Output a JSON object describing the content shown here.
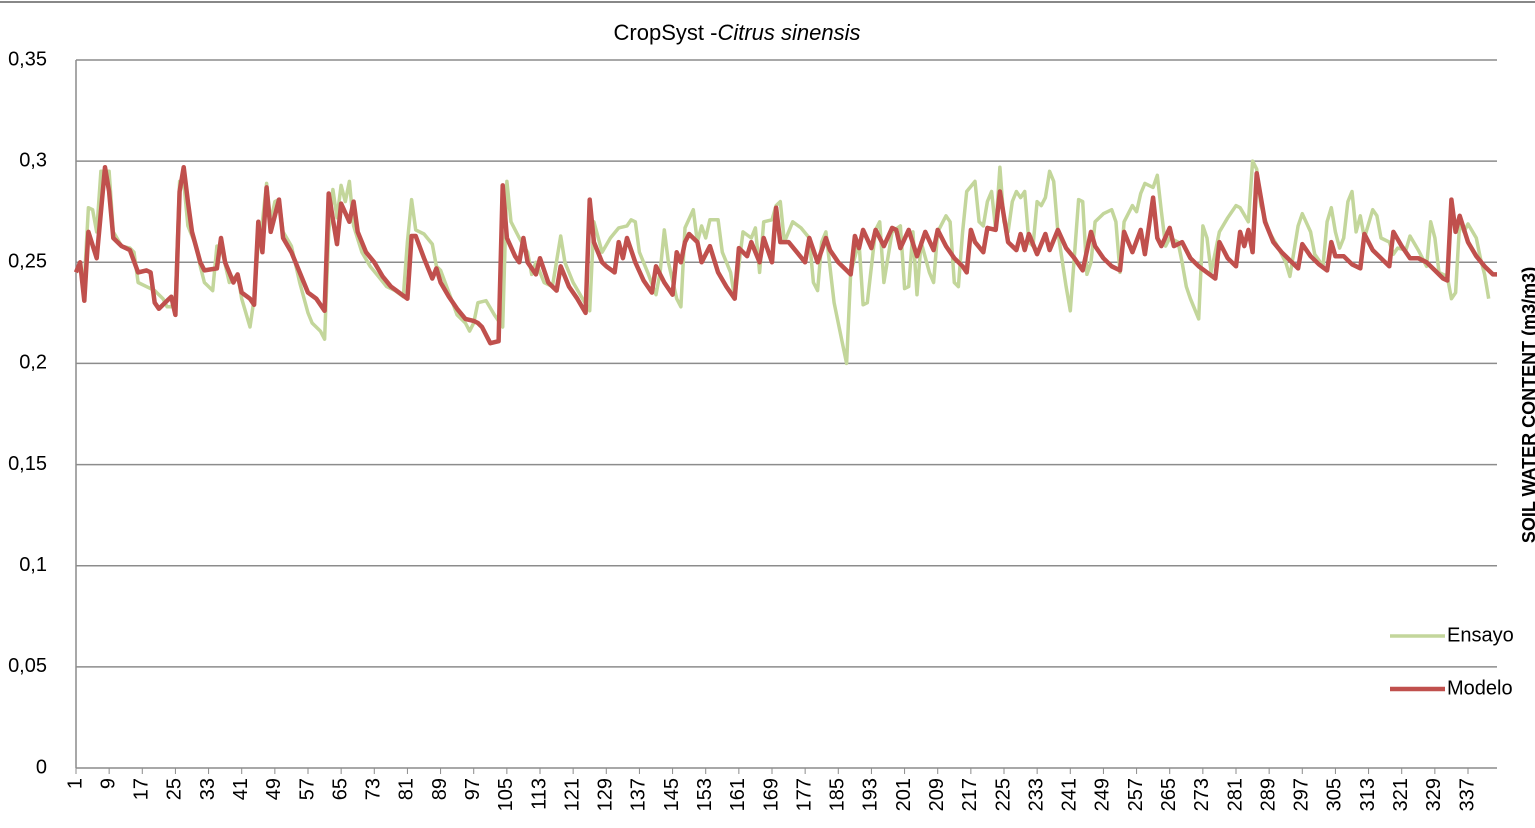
{
  "chart_data": {
    "type": "line",
    "title": "CropSyst -",
    "title_italic": "Citrus sinensis",
    "y_label": "SOIL WATER CONTENT (m3/m3)",
    "xlim": [
      1,
      344
    ],
    "xticks": [
      1,
      9,
      17,
      25,
      33,
      41,
      49,
      57,
      65,
      73,
      81,
      89,
      97,
      105,
      113,
      121,
      129,
      137,
      145,
      153,
      161,
      169,
      177,
      185,
      193,
      201,
      209,
      217,
      225,
      233,
      241,
      249,
      257,
      265,
      273,
      281,
      289,
      297,
      305,
      313,
      321,
      329,
      337
    ],
    "ylim": [
      0,
      0.35
    ],
    "yticks": [
      0,
      {
        "value": 0.05,
        "label": "0,05"
      },
      {
        "value": 0.1,
        "label": "0,1"
      },
      {
        "value": 0.15,
        "label": "0,15"
      },
      {
        "value": 0.2,
        "label": "0,2"
      },
      {
        "value": 0.25,
        "label": "0,25"
      },
      {
        "value": 0.3,
        "label": "0,3"
      },
      {
        "value": 0.35,
        "label": "0,35"
      }
    ],
    "grid": true,
    "legend": "right",
    "series": [
      {
        "name": "Ensayo",
        "color": "#c3d69b",
        "x": [
          1,
          2,
          3,
          4,
          5,
          6,
          7,
          9,
          10,
          12,
          14,
          15,
          16,
          18,
          20,
          22,
          23,
          24,
          25,
          26,
          27,
          28,
          30,
          31,
          32,
          34,
          35,
          36,
          38,
          40,
          41,
          43,
          44,
          45,
          46,
          47,
          48,
          49,
          50,
          51,
          53,
          55,
          57,
          58,
          60,
          61,
          62,
          63,
          64,
          65,
          66,
          67,
          68,
          70,
          72,
          74,
          76,
          78,
          80,
          81,
          82,
          83,
          85,
          87,
          88,
          89,
          91,
          93,
          95,
          96,
          97,
          98,
          100,
          102,
          104,
          105,
          106,
          108,
          110,
          111,
          112,
          114,
          116,
          118,
          119,
          121,
          123,
          125,
          126,
          128,
          130,
          132,
          134,
          135,
          136,
          137,
          139,
          141,
          142,
          143,
          144,
          146,
          147,
          148,
          150,
          151,
          152,
          153,
          154,
          156,
          157,
          159,
          160,
          162,
          164,
          165,
          166,
          167,
          169,
          170,
          171,
          172,
          174,
          176,
          178,
          179,
          180,
          181,
          182,
          184,
          186,
          187,
          188,
          190,
          191,
          192,
          194,
          195,
          196,
          198,
          200,
          201,
          202,
          203,
          204,
          205,
          207,
          208,
          209,
          211,
          212,
          213,
          214,
          215,
          216,
          218,
          219,
          220,
          221,
          222,
          223,
          224,
          225,
          226,
          227,
          228,
          229,
          230,
          231,
          232,
          233,
          234,
          235,
          236,
          237,
          238,
          240,
          241,
          243,
          244,
          245,
          246,
          247,
          249,
          251,
          252,
          253,
          254,
          256,
          257,
          258,
          259,
          261,
          262,
          263,
          264,
          265,
          267,
          268,
          269,
          270,
          272,
          273,
          274,
          275,
          277,
          279,
          281,
          282,
          284,
          285,
          286,
          287,
          289,
          291,
          293,
          294,
          296,
          297,
          299,
          300,
          302,
          303,
          304,
          305,
          306,
          307,
          308,
          309,
          310,
          311,
          312,
          314,
          315,
          316,
          318,
          319,
          320,
          322,
          323,
          325,
          327,
          328,
          329,
          330,
          332,
          333,
          334,
          335,
          336,
          337,
          339,
          340,
          341,
          342
        ],
        "values": [
          0.245,
          0.248,
          0.24,
          0.277,
          0.276,
          0.265,
          0.295,
          0.295,
          0.265,
          0.258,
          0.257,
          0.255,
          0.24,
          0.238,
          0.236,
          0.232,
          0.228,
          0.228,
          0.232,
          0.29,
          0.29,
          0.268,
          0.258,
          0.248,
          0.24,
          0.236,
          0.258,
          0.258,
          0.24,
          0.244,
          0.232,
          0.218,
          0.232,
          0.26,
          0.27,
          0.289,
          0.27,
          0.28,
          0.281,
          0.265,
          0.258,
          0.24,
          0.225,
          0.22,
          0.216,
          0.212,
          0.265,
          0.286,
          0.272,
          0.288,
          0.28,
          0.29,
          0.268,
          0.255,
          0.248,
          0.243,
          0.238,
          0.236,
          0.233,
          0.26,
          0.281,
          0.266,
          0.264,
          0.259,
          0.248,
          0.246,
          0.235,
          0.224,
          0.22,
          0.216,
          0.22,
          0.23,
          0.231,
          0.224,
          0.218,
          0.29,
          0.27,
          0.262,
          0.255,
          0.244,
          0.25,
          0.24,
          0.238,
          0.263,
          0.25,
          0.24,
          0.233,
          0.226,
          0.27,
          0.255,
          0.262,
          0.267,
          0.268,
          0.271,
          0.27,
          0.255,
          0.245,
          0.234,
          0.245,
          0.266,
          0.25,
          0.232,
          0.228,
          0.267,
          0.276,
          0.26,
          0.268,
          0.262,
          0.271,
          0.271,
          0.255,
          0.245,
          0.232,
          0.265,
          0.262,
          0.267,
          0.245,
          0.27,
          0.271,
          0.278,
          0.28,
          0.26,
          0.27,
          0.267,
          0.262,
          0.24,
          0.236,
          0.26,
          0.265,
          0.23,
          0.21,
          0.2,
          0.245,
          0.26,
          0.229,
          0.23,
          0.266,
          0.27,
          0.24,
          0.265,
          0.268,
          0.237,
          0.238,
          0.265,
          0.234,
          0.26,
          0.245,
          0.24,
          0.265,
          0.273,
          0.27,
          0.24,
          0.238,
          0.265,
          0.285,
          0.29,
          0.27,
          0.268,
          0.28,
          0.285,
          0.266,
          0.297,
          0.27,
          0.265,
          0.28,
          0.285,
          0.282,
          0.285,
          0.26,
          0.258,
          0.28,
          0.278,
          0.282,
          0.295,
          0.29,
          0.265,
          0.238,
          0.226,
          0.281,
          0.28,
          0.244,
          0.25,
          0.27,
          0.274,
          0.276,
          0.27,
          0.245,
          0.27,
          0.278,
          0.275,
          0.284,
          0.289,
          0.287,
          0.293,
          0.275,
          0.258,
          0.262,
          0.26,
          0.25,
          0.238,
          0.232,
          0.222,
          0.268,
          0.262,
          0.245,
          0.265,
          0.272,
          0.278,
          0.277,
          0.27,
          0.3,
          0.296,
          0.278,
          0.265,
          0.258,
          0.25,
          0.243,
          0.268,
          0.274,
          0.265,
          0.254,
          0.248,
          0.27,
          0.277,
          0.265,
          0.257,
          0.262,
          0.28,
          0.285,
          0.265,
          0.273,
          0.262,
          0.276,
          0.273,
          0.262,
          0.26,
          0.254,
          0.257,
          0.256,
          0.263,
          0.256,
          0.248,
          0.27,
          0.262,
          0.245,
          0.243,
          0.232,
          0.235,
          0.27,
          0.265,
          0.269,
          0.262,
          0.252,
          0.244,
          0.232
        ]
      },
      {
        "name": "Modelo",
        "color": "#c0504d",
        "x": [
          1,
          2,
          3,
          4,
          6,
          8,
          9,
          10,
          12,
          14,
          16,
          18,
          19,
          20,
          21,
          23,
          24,
          25,
          26,
          27,
          28,
          29,
          31,
          32,
          35,
          36,
          37,
          39,
          40,
          41,
          43,
          44,
          45,
          46,
          47,
          48,
          50,
          51,
          53,
          55,
          57,
          59,
          61,
          62,
          64,
          65,
          67,
          68,
          69,
          71,
          73,
          75,
          77,
          79,
          81,
          82,
          83,
          85,
          87,
          88,
          89,
          91,
          93,
          95,
          97,
          98,
          99,
          101,
          103,
          104,
          105,
          107,
          108,
          109,
          110,
          112,
          113,
          115,
          117,
          118,
          120,
          122,
          124,
          125,
          126,
          128,
          129,
          131,
          132,
          133,
          134,
          136,
          138,
          140,
          141,
          143,
          145,
          146,
          147,
          148,
          149,
          151,
          152,
          154,
          156,
          158,
          160,
          161,
          163,
          164,
          166,
          167,
          169,
          170,
          171,
          173,
          175,
          177,
          178,
          180,
          182,
          183,
          185,
          187,
          188,
          189,
          190,
          191,
          193,
          194,
          196,
          198,
          199,
          200,
          202,
          204,
          206,
          208,
          209,
          211,
          213,
          215,
          216,
          217,
          218,
          220,
          221,
          223,
          224,
          226,
          228,
          229,
          230,
          231,
          233,
          235,
          236,
          238,
          240,
          242,
          244,
          246,
          247,
          249,
          251,
          253,
          254,
          256,
          258,
          259,
          261,
          262,
          263,
          265,
          266,
          268,
          270,
          272,
          274,
          276,
          277,
          279,
          281,
          282,
          283,
          284,
          285,
          286,
          288,
          290,
          292,
          294,
          296,
          297,
          299,
          301,
          303,
          304,
          305,
          307,
          309,
          311,
          312,
          314,
          316,
          318,
          319,
          321,
          323,
          325,
          327,
          329,
          331,
          332,
          333,
          334,
          335,
          337,
          339,
          341,
          343,
          344
        ],
        "values": [
          0.245,
          0.25,
          0.231,
          0.265,
          0.252,
          0.297,
          0.285,
          0.262,
          0.258,
          0.256,
          0.245,
          0.246,
          0.245,
          0.23,
          0.227,
          0.231,
          0.233,
          0.224,
          0.285,
          0.297,
          0.28,
          0.265,
          0.25,
          0.246,
          0.247,
          0.262,
          0.25,
          0.24,
          0.244,
          0.235,
          0.232,
          0.229,
          0.27,
          0.255,
          0.287,
          0.265,
          0.281,
          0.262,
          0.255,
          0.245,
          0.235,
          0.232,
          0.226,
          0.284,
          0.259,
          0.279,
          0.27,
          0.28,
          0.265,
          0.255,
          0.25,
          0.243,
          0.238,
          0.235,
          0.232,
          0.263,
          0.263,
          0.252,
          0.242,
          0.247,
          0.24,
          0.233,
          0.227,
          0.222,
          0.221,
          0.22,
          0.218,
          0.21,
          0.211,
          0.288,
          0.262,
          0.253,
          0.25,
          0.262,
          0.25,
          0.244,
          0.252,
          0.24,
          0.236,
          0.248,
          0.238,
          0.232,
          0.225,
          0.281,
          0.26,
          0.25,
          0.248,
          0.245,
          0.26,
          0.252,
          0.262,
          0.25,
          0.241,
          0.235,
          0.248,
          0.24,
          0.234,
          0.255,
          0.25,
          0.26,
          0.264,
          0.26,
          0.25,
          0.258,
          0.245,
          0.238,
          0.232,
          0.257,
          0.253,
          0.26,
          0.25,
          0.262,
          0.25,
          0.277,
          0.26,
          0.26,
          0.255,
          0.25,
          0.262,
          0.25,
          0.262,
          0.256,
          0.25,
          0.246,
          0.244,
          0.263,
          0.257,
          0.266,
          0.257,
          0.266,
          0.258,
          0.267,
          0.266,
          0.257,
          0.266,
          0.253,
          0.265,
          0.256,
          0.266,
          0.258,
          0.252,
          0.248,
          0.245,
          0.266,
          0.26,
          0.255,
          0.267,
          0.266,
          0.285,
          0.26,
          0.256,
          0.264,
          0.256,
          0.264,
          0.254,
          0.264,
          0.256,
          0.266,
          0.257,
          0.252,
          0.246,
          0.265,
          0.258,
          0.252,
          0.248,
          0.246,
          0.265,
          0.255,
          0.266,
          0.254,
          0.282,
          0.262,
          0.258,
          0.267,
          0.258,
          0.26,
          0.252,
          0.248,
          0.245,
          0.242,
          0.26,
          0.252,
          0.248,
          0.265,
          0.258,
          0.266,
          0.255,
          0.294,
          0.27,
          0.26,
          0.255,
          0.251,
          0.247,
          0.259,
          0.253,
          0.249,
          0.246,
          0.26,
          0.253,
          0.253,
          0.249,
          0.247,
          0.264,
          0.256,
          0.252,
          0.248,
          0.265,
          0.258,
          0.252,
          0.252,
          0.25,
          0.246,
          0.242,
          0.241,
          0.281,
          0.265,
          0.273,
          0.26,
          0.253,
          0.248,
          0.244,
          0.244
        ]
      }
    ]
  }
}
